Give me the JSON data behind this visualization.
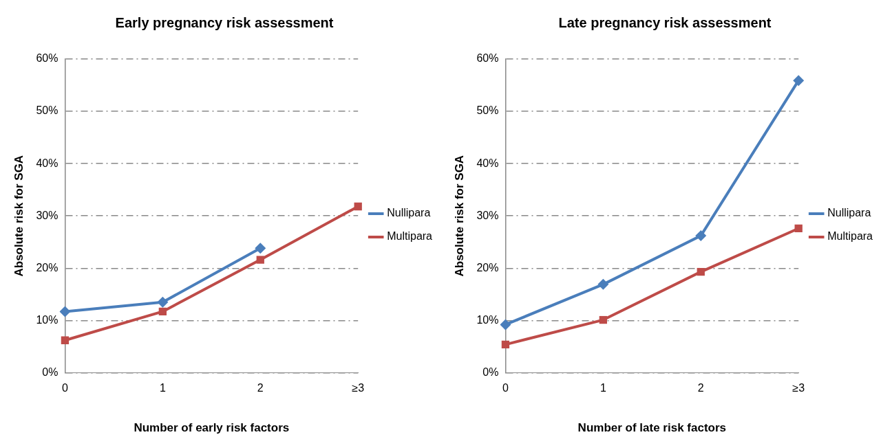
{
  "chart_data": [
    {
      "type": "line",
      "title": "Early pregnancy risk assessment",
      "xlabel": "Number of early risk factors",
      "ylabel": "Absolute risk for SGA",
      "categories": [
        "0",
        "1",
        "2",
        "≥3"
      ],
      "series": [
        {
          "name": "Nullipara",
          "color": "#4a7ebb",
          "marker": "diamond",
          "values": [
            11.7,
            13.5,
            23.8,
            null
          ]
        },
        {
          "name": "Multipara",
          "color": "#be4b48",
          "marker": "square",
          "values": [
            6.2,
            11.7,
            21.6,
            31.8
          ]
        }
      ],
      "ylim": [
        0,
        60
      ],
      "yticks": [
        {
          "value": 0,
          "label": "0%"
        },
        {
          "value": 10,
          "label": "10%"
        },
        {
          "value": 20,
          "label": "20%"
        },
        {
          "value": 30,
          "label": "30%"
        },
        {
          "value": 40,
          "label": "40%"
        },
        {
          "value": 50,
          "label": "50%"
        },
        {
          "value": 60,
          "label": "60%"
        }
      ],
      "grid": "y",
      "legend": "right"
    },
    {
      "type": "line",
      "title": "Late pregnancy risk assessment",
      "xlabel": "Number of late risk factors",
      "ylabel": "Absolute risk for SGA",
      "categories": [
        "0",
        "1",
        "2",
        "≥3"
      ],
      "series": [
        {
          "name": "Nullipara",
          "color": "#4a7ebb",
          "marker": "diamond",
          "values": [
            9.2,
            16.9,
            26.2,
            55.9
          ]
        },
        {
          "name": "Multipara",
          "color": "#be4b48",
          "marker": "square",
          "values": [
            5.4,
            10.1,
            19.3,
            27.6
          ]
        }
      ],
      "ylim": [
        0,
        60
      ],
      "yticks": [
        {
          "value": 0,
          "label": "0%"
        },
        {
          "value": 10,
          "label": "10%"
        },
        {
          "value": 20,
          "label": "20%"
        },
        {
          "value": 30,
          "label": "30%"
        },
        {
          "value": 40,
          "label": "40%"
        },
        {
          "value": 50,
          "label": "50%"
        },
        {
          "value": 60,
          "label": "60%"
        }
      ],
      "grid": "y",
      "legend": "right"
    }
  ]
}
